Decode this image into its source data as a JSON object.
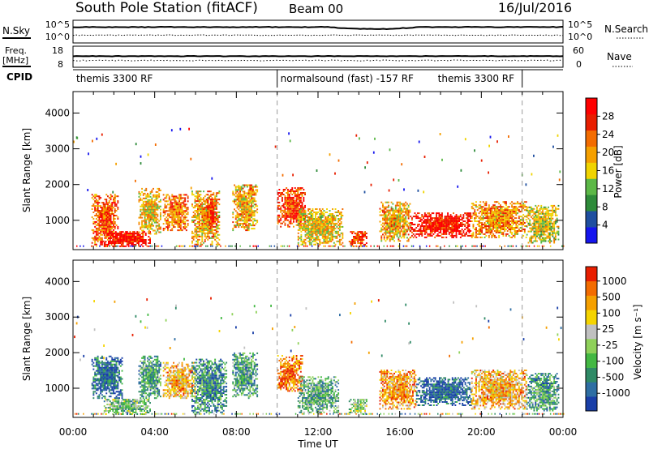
{
  "header": {
    "station": "South Pole Station (fitACF)",
    "beam": "Beam 00",
    "date": "16/Jul/2016"
  },
  "summary": {
    "nsky_label": "N.Sky",
    "nsky_ticks": [
      "10^5",
      "10^0"
    ],
    "nsearch_label": "N.Search",
    "nsearch_ticks": [
      "10^5",
      "10^0"
    ],
    "freq_label": "Freq.",
    "freq_unit": "[MHz]",
    "freq_ticks": [
      "18",
      "8"
    ],
    "nave_label": "Nave",
    "nave_ticks": [
      "60",
      "0"
    ],
    "cpid_label": "CPID",
    "cpid_segments": [
      {
        "label": "themis 3300 RF",
        "start": 0,
        "end": 10
      },
      {
        "label": "normalsound (fast) -157 RF",
        "start": 10,
        "end": 22
      },
      {
        "label": "themis 3300 RF",
        "start": 22,
        "end": 24
      }
    ]
  },
  "chart_data": [
    {
      "type": "heatmap",
      "ylabel": "Slant Range [km]",
      "ylim": [
        180,
        4600
      ],
      "xlim": [
        0,
        24
      ],
      "yticks": [
        "1000",
        "2000",
        "3000",
        "4000"
      ],
      "colorbar": {
        "label": "Power [dB]",
        "ticks": [
          "4",
          "8",
          "12",
          "16",
          "20",
          "24",
          "28"
        ],
        "colors": [
          "#1515ee",
          "#1f4fa0",
          "#2e8b3a",
          "#5cb847",
          "#f0d400",
          "#f5a000",
          "#f36c00",
          "#e81e00",
          "#ff0000"
        ]
      },
      "echo_regions": [
        {
          "t0": 0.9,
          "t1": 2.2,
          "r0": 300,
          "r1": 1700,
          "level": 0.75
        },
        {
          "t0": 1.5,
          "t1": 3.8,
          "r0": 250,
          "r1": 700,
          "level": 0.95
        },
        {
          "t0": 3.2,
          "t1": 4.3,
          "r0": 600,
          "r1": 1900,
          "level": 0.55
        },
        {
          "t0": 4.4,
          "t1": 5.6,
          "r0": 700,
          "r1": 1700,
          "level": 0.7
        },
        {
          "t0": 5.8,
          "t1": 7.2,
          "r0": 300,
          "r1": 1800,
          "level": 0.6
        },
        {
          "t0": 6.5,
          "t1": 7.0,
          "r0": 800,
          "r1": 1600,
          "level": 0.85
        },
        {
          "t0": 7.8,
          "t1": 9.0,
          "r0": 700,
          "r1": 2000,
          "level": 0.6
        },
        {
          "t0": 10.0,
          "t1": 11.4,
          "r0": 800,
          "r1": 1900,
          "level": 0.8
        },
        {
          "t0": 11.0,
          "t1": 13.2,
          "r0": 300,
          "r1": 1300,
          "level": 0.55
        },
        {
          "t0": 13.5,
          "t1": 14.4,
          "r0": 250,
          "r1": 700,
          "level": 0.85
        },
        {
          "t0": 15.0,
          "t1": 16.5,
          "r0": 400,
          "r1": 1500,
          "level": 0.6
        },
        {
          "t0": 16.5,
          "t1": 19.5,
          "r0": 500,
          "r1": 1200,
          "level": 0.9
        },
        {
          "t0": 19.5,
          "t1": 22.2,
          "r0": 500,
          "r1": 1500,
          "level": 0.65
        },
        {
          "t0": 22.2,
          "t1": 23.8,
          "r0": 350,
          "r1": 1400,
          "level": 0.5
        }
      ]
    },
    {
      "type": "heatmap",
      "ylabel": "Slant Range [km]",
      "ylim": [
        180,
        4600
      ],
      "xlim": [
        0,
        24
      ],
      "yticks": [
        "1000",
        "2000",
        "3000",
        "4000"
      ],
      "xticks": [
        "00:00",
        "04:00",
        "08:00",
        "12:00",
        "16:00",
        "20:00",
        "00:00"
      ],
      "xlabel": "Time UT",
      "colorbar": {
        "label": "Velocity [m s⁻¹]",
        "ticks": [
          "1000",
          "500",
          "100",
          "25",
          "-25",
          "-100",
          "-500",
          "-1000"
        ],
        "colors": [
          "#1a3fa8",
          "#2e6ea3",
          "#2f8a66",
          "#43b843",
          "#8fd15a",
          "#c0c0c0",
          "#f5d400",
          "#f5a000",
          "#f36c00",
          "#e81e00"
        ]
      },
      "echo_regions": [
        {
          "t0": 0.9,
          "t1": 2.4,
          "r0": 700,
          "r1": 1900,
          "level": 0.15
        },
        {
          "t0": 1.5,
          "t1": 3.8,
          "r0": 250,
          "r1": 700,
          "level": 0.4
        },
        {
          "t0": 3.2,
          "t1": 4.3,
          "r0": 700,
          "r1": 1900,
          "level": 0.3
        },
        {
          "t0": 4.4,
          "t1": 6.0,
          "r0": 700,
          "r1": 1700,
          "level": 0.7
        },
        {
          "t0": 5.8,
          "t1": 7.5,
          "r0": 300,
          "r1": 1800,
          "level": 0.25
        },
        {
          "t0": 7.8,
          "t1": 9.0,
          "r0": 700,
          "r1": 2000,
          "level": 0.3
        },
        {
          "t0": 10.0,
          "t1": 11.2,
          "r0": 900,
          "r1": 1900,
          "level": 0.85
        },
        {
          "t0": 11.0,
          "t1": 13.0,
          "r0": 300,
          "r1": 1300,
          "level": 0.35
        },
        {
          "t0": 13.5,
          "t1": 14.4,
          "r0": 250,
          "r1": 700,
          "level": 0.45
        },
        {
          "t0": 15.0,
          "t1": 16.8,
          "r0": 400,
          "r1": 1500,
          "level": 0.75
        },
        {
          "t0": 16.8,
          "t1": 19.5,
          "r0": 500,
          "r1": 1300,
          "level": 0.12
        },
        {
          "t0": 19.5,
          "t1": 22.2,
          "r0": 400,
          "r1": 1500,
          "level": 0.7
        },
        {
          "t0": 22.2,
          "t1": 23.8,
          "r0": 350,
          "r1": 1400,
          "level": 0.3
        }
      ]
    }
  ]
}
